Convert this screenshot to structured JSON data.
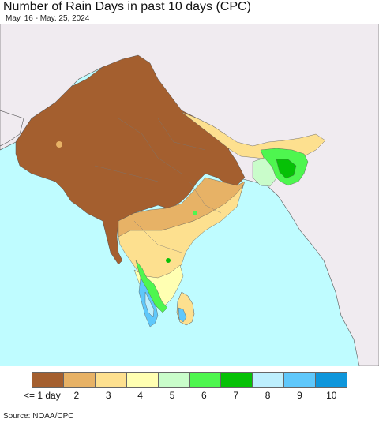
{
  "title": "Number of Rain Days in past 10 days (CPC)",
  "subtitle": "May. 16 - May. 25, 2024",
  "source": "Source: NOAA/CPC",
  "colors": {
    "ocean": "#bffcff",
    "land_outside": "#f0ebf0",
    "border": "#555555"
  },
  "legend": [
    {
      "label": "<= 1 day",
      "color": "#a45f2f"
    },
    {
      "label": "2",
      "color": "#e7b266"
    },
    {
      "label": "3",
      "color": "#fde08f"
    },
    {
      "label": "4",
      "color": "#ffffb2"
    },
    {
      "label": "5",
      "color": "#c9fcca"
    },
    {
      "label": "6",
      "color": "#4ef64f"
    },
    {
      "label": "7",
      "color": "#06c106"
    },
    {
      "label": "8",
      "color": "#bdeffd"
    },
    {
      "label": "9",
      "color": "#5fc8fb"
    },
    {
      "label": "10",
      "color": "#0e96db"
    }
  ]
}
